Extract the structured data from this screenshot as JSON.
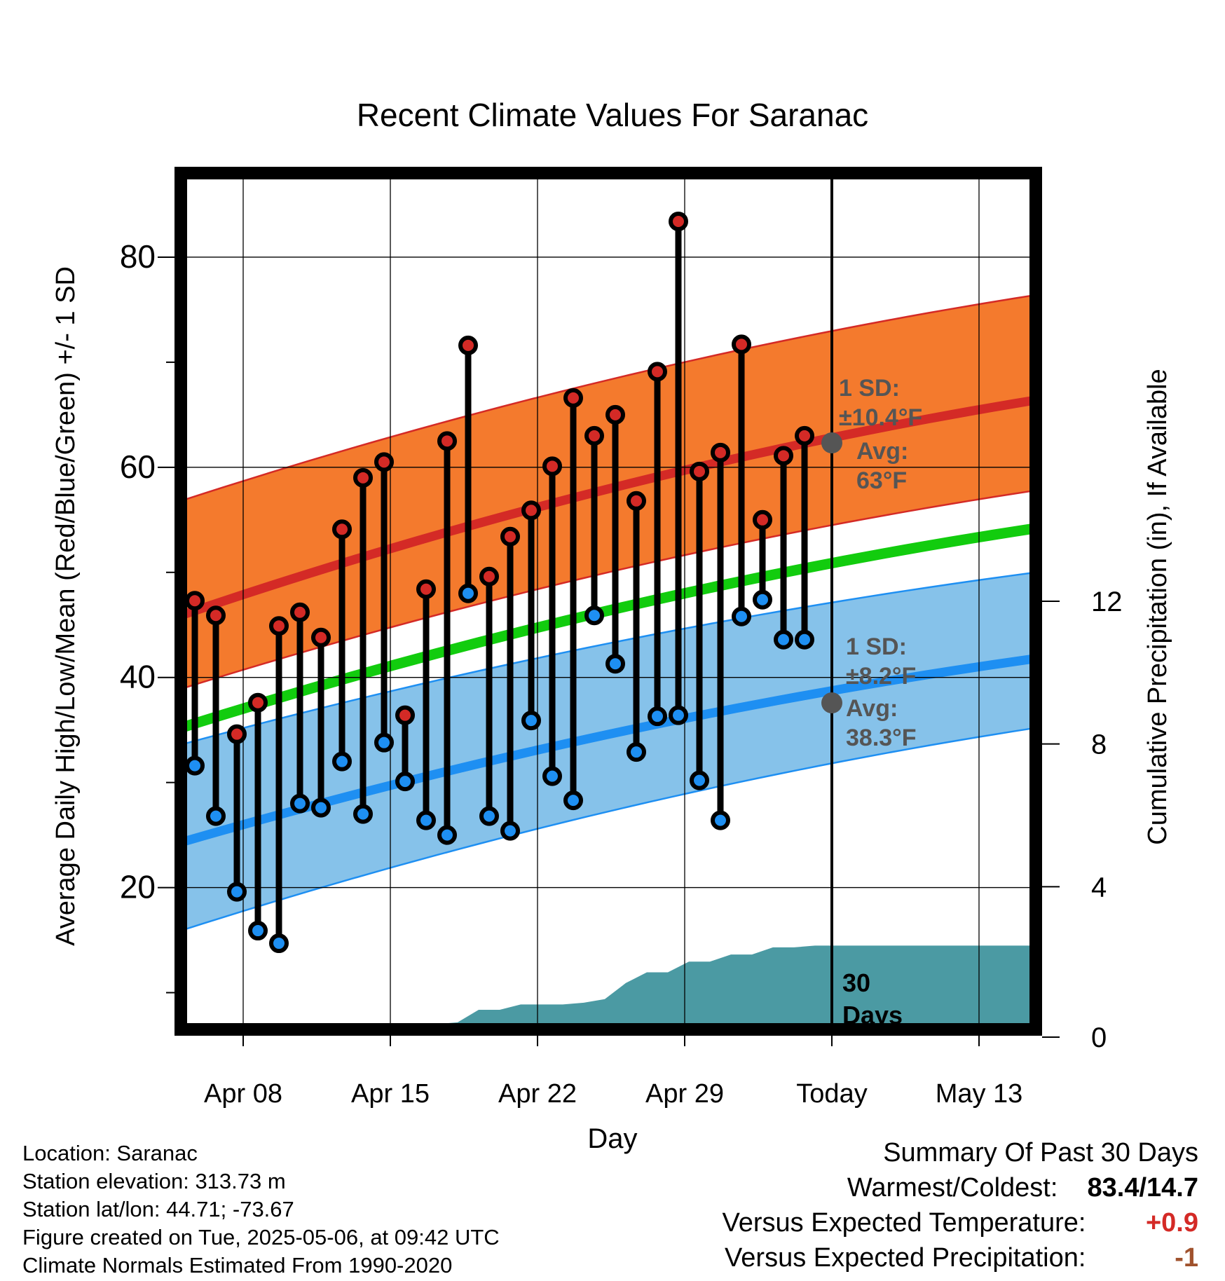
{
  "chart_data": {
    "type": "line",
    "title": "Recent Climate Values For Saranac",
    "xlabel": "Day",
    "ylabel": "Average Daily High/Low/Mean (Red/Blue/Green) +/- 1 SD",
    "ylabel_right": "Cumulative Precipitation (in), If Available",
    "x_ticks": [
      "Apr 08",
      "Apr 15",
      "Apr 22",
      "Apr 29",
      "Today",
      "May 13"
    ],
    "y_ticks": [
      20,
      40,
      60,
      80
    ],
    "y_right_ticks": [
      0,
      4,
      8,
      12
    ],
    "ylim": [
      6.5,
      88
    ],
    "ylim_right": [
      0,
      24
    ],
    "grid": true,
    "colors": {
      "high_band": "#f47a2d",
      "high_line": "#d42a26",
      "low_band": "#86c2ea",
      "low_line": "#1e8ff2",
      "mean_line": "#12cc0e",
      "precip": "#4b9aa3",
      "high_marker": "#d42a26",
      "low_marker": "#1e8ff2",
      "avg_marker": "#555555",
      "annotation": "#555555"
    },
    "days": [
      "Apr 05",
      "Apr 06",
      "Apr 07",
      "Apr 08",
      "Apr 09",
      "Apr 10",
      "Apr 11",
      "Apr 12",
      "Apr 13",
      "Apr 14",
      "Apr 15",
      "Apr 16",
      "Apr 17",
      "Apr 18",
      "Apr 19",
      "Apr 20",
      "Apr 21",
      "Apr 22",
      "Apr 23",
      "Apr 24",
      "Apr 25",
      "Apr 26",
      "Apr 27",
      "Apr 28",
      "Apr 29",
      "Apr 30",
      "May 01",
      "May 02",
      "May 03",
      "May 04",
      "May 05",
      "May 06",
      "May 07",
      "May 08",
      "May 09",
      "May 10",
      "May 11",
      "May 12",
      "May 13",
      "May 14",
      "May 15",
      "May 16"
    ],
    "observed_days": [
      "Apr 05",
      "Apr 06",
      "Apr 07",
      "Apr 08",
      "Apr 09",
      "Apr 10",
      "Apr 11",
      "Apr 12",
      "Apr 13",
      "Apr 14",
      "Apr 15",
      "Apr 16",
      "Apr 17",
      "Apr 18",
      "Apr 19",
      "Apr 20",
      "Apr 21",
      "Apr 22",
      "Apr 23",
      "Apr 24",
      "Apr 25",
      "Apr 26",
      "Apr 27",
      "Apr 28",
      "Apr 29",
      "Apr 30",
      "May 01",
      "May 02",
      "May 03",
      "May 04",
      "May 05"
    ],
    "series": [
      {
        "name": "High",
        "values": [
          47.3,
          45.9,
          34.6,
          37.6,
          44.9,
          46.2,
          43.8,
          54.1,
          59.0,
          60.5,
          36.4,
          48.4,
          62.5,
          71.6,
          49.6,
          53.4,
          55.9,
          60.1,
          66.6,
          63.0,
          65.0,
          56.8,
          69.1,
          83.4,
          59.6,
          61.4,
          71.7,
          55.0,
          61.1,
          63.0,
          null
        ]
      },
      {
        "name": "Low",
        "values": [
          31.6,
          26.8,
          19.6,
          15.9,
          14.7,
          28.0,
          27.6,
          32.0,
          27.0,
          33.8,
          30.1,
          26.4,
          25.0,
          48.0,
          26.8,
          25.4,
          35.9,
          30.6,
          28.3,
          45.9,
          41.3,
          32.9,
          36.3,
          36.4,
          30.2,
          26.4,
          45.8,
          47.4,
          43.6,
          43.6,
          null
        ]
      }
    ],
    "normals": {
      "x": [
        "Apr 04",
        "May 16"
      ],
      "high_avg": [
        45.9,
        66.4
      ],
      "high_sd_upper": [
        56.8,
        76.4
      ],
      "high_sd_lower": [
        38.9,
        57.8
      ],
      "low_avg": [
        24.3,
        41.8
      ],
      "low_sd_upper": [
        33.6,
        50.0
      ],
      "low_sd_lower": [
        15.9,
        35.2
      ],
      "mean_avg": [
        35.2,
        54.2
      ]
    },
    "precip_cumulative": [
      0,
      0,
      0,
      0,
      0,
      0,
      0,
      0.1,
      0.1,
      0.1,
      0.15,
      0.15,
      0.15,
      0.2,
      0.55,
      0.55,
      0.7,
      0.7,
      0.7,
      0.75,
      0.85,
      1.3,
      1.6,
      1.6,
      1.9,
      1.9,
      2.1,
      2.1,
      2.3,
      2.3,
      2.35,
      2.35,
      2.35,
      2.35,
      2.35,
      2.35,
      2.35,
      2.35,
      2.35,
      2.35,
      2.35,
      2.35
    ],
    "today_marker": "Today",
    "period_label": "30\nDays",
    "annotations": {
      "high_sd": "1 SD:",
      "high_sd_value": "±10.4°F",
      "high_avg": "Avg:",
      "high_avg_value": "63°F",
      "low_sd": "1 SD:",
      "low_sd_value": "±8.2°F",
      "low_avg": "Avg:",
      "low_avg_value": "38.3°F"
    }
  },
  "info": {
    "location": "Location: Saranac",
    "elevation": "Station elevation: 313.73 m",
    "latlon": "Station lat/lon: 44.71; -73.67",
    "created": "Figure created on Tue, 2025-05-06, at 09:42 UTC",
    "normals": "Climate Normals Estimated From 1990-2020"
  },
  "summary": {
    "title": "Summary Of Past 30 Days",
    "warmest_coldest_label": "Warmest/Coldest:",
    "warmest_coldest_value": "83.4/14.7",
    "temp_label": "Versus Expected Temperature:",
    "temp_value": "+0.9",
    "temp_color": "#d42a26",
    "precip_label": "Versus Expected Precipitation:",
    "precip_value": "-1",
    "precip_color": "#a0522d"
  }
}
